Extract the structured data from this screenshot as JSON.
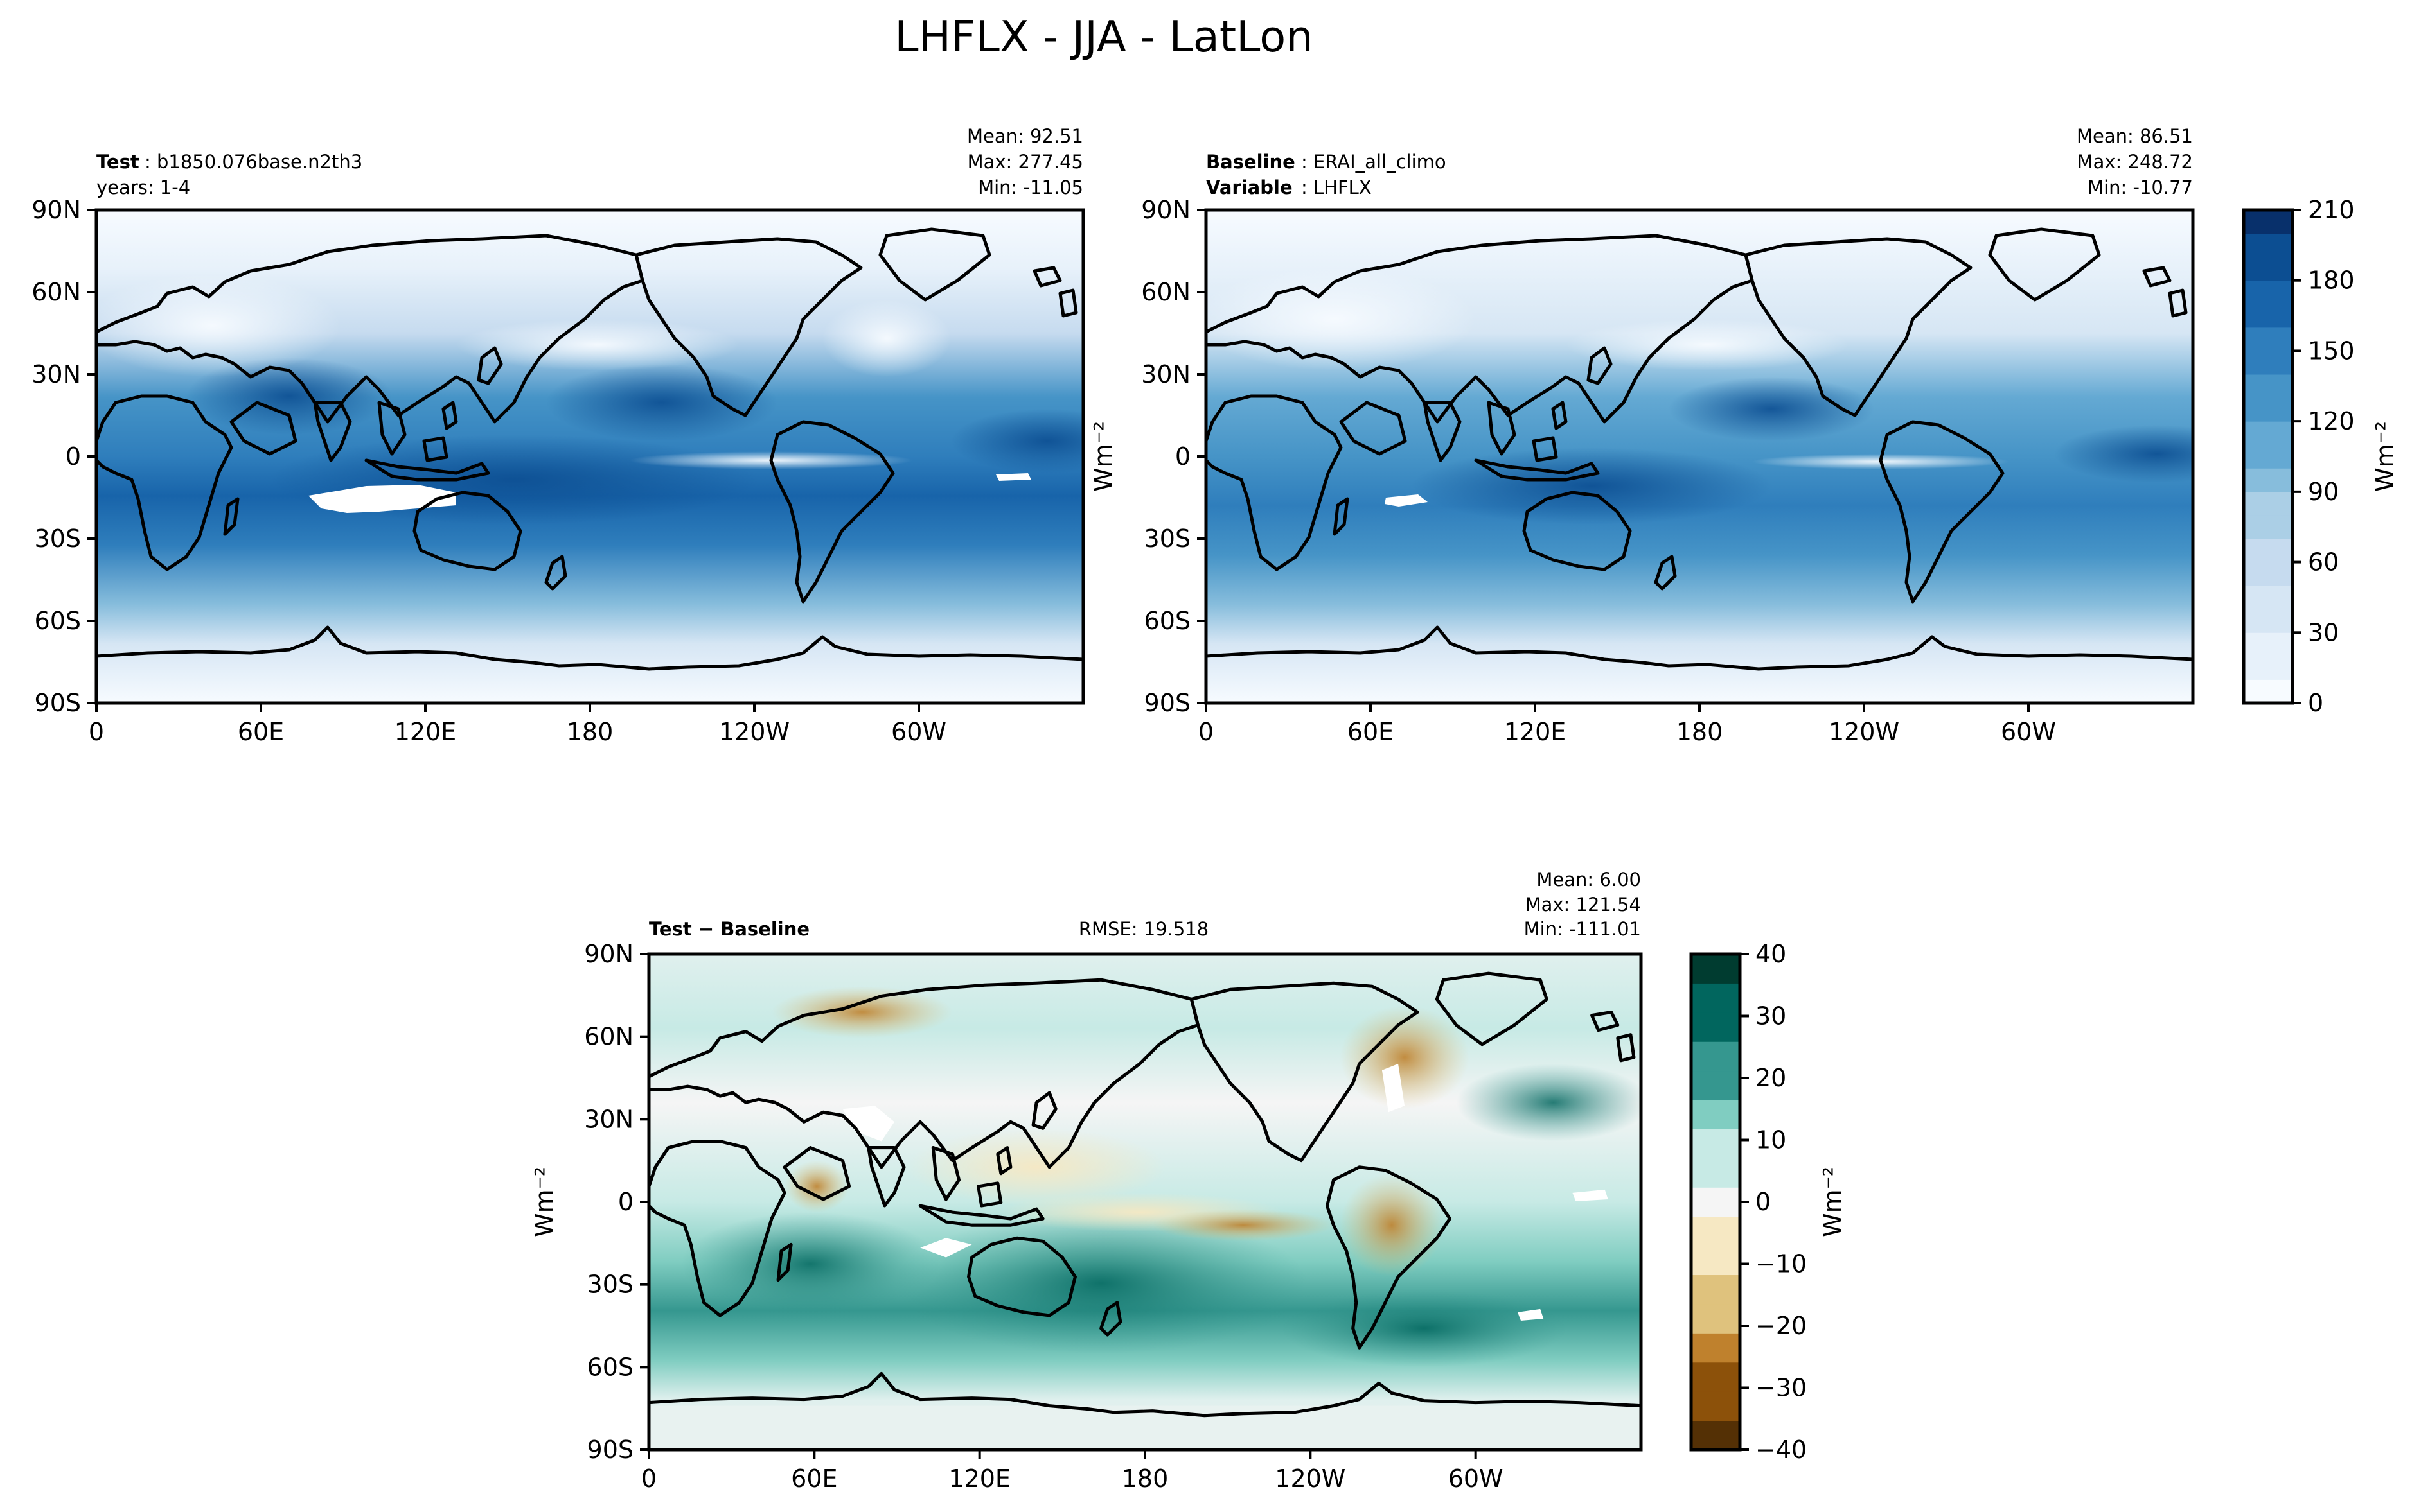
{
  "figure": {
    "title": "LHFLX - JJA - LatLon"
  },
  "panels": {
    "test": {
      "left_label_bold": "Test",
      "left_label_value": ": b1850.076base.n2th3",
      "left_label_line2": "years: 1-4",
      "stats": {
        "mean": "Mean: 92.51",
        "max": "Max: 277.45",
        "min": "Min: -11.05"
      }
    },
    "baseline": {
      "left_label_bold": "Baseline",
      "left_label_value": ": ERAI_all_climo",
      "left_label2_bold": "Variable",
      "left_label2_value": ": LHFLX",
      "stats": {
        "mean": "Mean: 86.51",
        "max": "Max: 248.72",
        "min": "Min: -10.77"
      }
    },
    "diff": {
      "left_label_test": "Test",
      "left_label_minus": " − ",
      "left_label_base": "Baseline",
      "rmse": "RMSE: 19.518",
      "stats": {
        "mean": "Mean:  6.00",
        "max": "Max: 121.54",
        "min": "Min: -111.01"
      }
    }
  },
  "colorbars": {
    "top": {
      "unit": "Wm⁻²",
      "ticks": [
        "0",
        "30",
        "60",
        "90",
        "120",
        "150",
        "180",
        "210"
      ]
    },
    "diff": {
      "unit": "Wm⁻²",
      "ticks": [
        "−40",
        "−30",
        "−20",
        "−10",
        "0",
        "10",
        "20",
        "30",
        "40"
      ]
    }
  },
  "axis_labels": {
    "baseline_left": "Wm⁻²",
    "diff_left": "Wm⁻²"
  },
  "chart_data": [
    {
      "type": "heatmap",
      "panel": "test",
      "xlabel": "",
      "ylabel": "",
      "x_ticks": [
        "0",
        "60E",
        "120E",
        "180",
        "120W",
        "60W"
      ],
      "y_ticks": [
        "90N",
        "60N",
        "30N",
        "0",
        "30S",
        "60S",
        "90S"
      ],
      "xlim": [
        0,
        360
      ],
      "ylim": [
        -90,
        90
      ],
      "colormap": "Blues",
      "vmin": 0,
      "vmax": 210
    },
    {
      "type": "heatmap",
      "panel": "baseline",
      "xlabel": "",
      "ylabel": "",
      "x_ticks": [
        "0",
        "60E",
        "120E",
        "180",
        "120W",
        "60W"
      ],
      "y_ticks": [
        "90N",
        "60N",
        "30N",
        "0",
        "30S",
        "60S",
        "90S"
      ],
      "xlim": [
        0,
        360
      ],
      "ylim": [
        -90,
        90
      ],
      "colormap": "Blues",
      "vmin": 0,
      "vmax": 210
    },
    {
      "type": "heatmap",
      "panel": "diff",
      "xlabel": "",
      "ylabel": "",
      "x_ticks": [
        "0",
        "60E",
        "120E",
        "180",
        "120W",
        "60W"
      ],
      "y_ticks": [
        "90N",
        "60N",
        "30N",
        "0",
        "30S",
        "60S",
        "90S"
      ],
      "xlim": [
        0,
        360
      ],
      "ylim": [
        -90,
        90
      ],
      "colormap": "BrBG",
      "vmin": -40,
      "vmax": 40
    }
  ],
  "colors": {
    "blues": [
      "#f7fbff",
      "#e7f1fa",
      "#d6e6f4",
      "#c6dbef",
      "#abcfe6",
      "#87bddc",
      "#64a9d3",
      "#4694c7",
      "#2f7ebc",
      "#1864aa",
      "#0c4e92",
      "#08306b"
    ],
    "brbg": [
      "#543005",
      "#8c510a",
      "#bf812d",
      "#dfc27d",
      "#f6e8c3",
      "#f5f5f5",
      "#c7eae5",
      "#80cdc1",
      "#35978f",
      "#01665e",
      "#003c30"
    ]
  }
}
